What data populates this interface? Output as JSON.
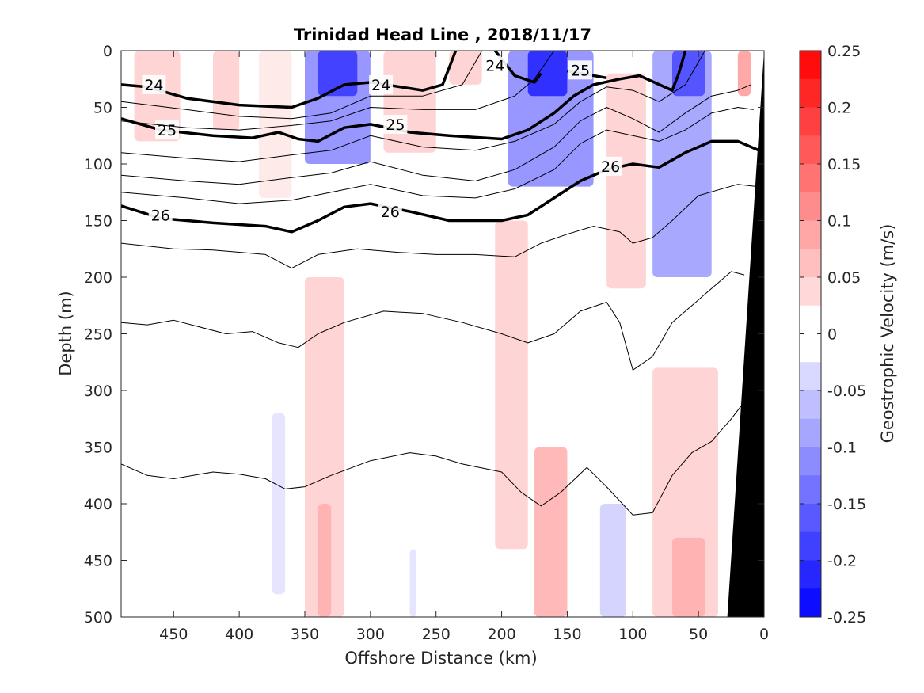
{
  "chart_data": {
    "type": "contour",
    "title": "Trinidad Head Line , 2018/11/17",
    "xlabel": "Offshore Distance (km)",
    "ylabel": "Depth (m)",
    "xlim": [
      490,
      0
    ],
    "ylim": [
      0,
      500
    ],
    "x_reversed": true,
    "y_reversed": true,
    "x_ticks": [
      450,
      400,
      350,
      300,
      250,
      200,
      150,
      100,
      50,
      0
    ],
    "y_ticks": [
      0,
      50,
      100,
      150,
      200,
      250,
      300,
      350,
      400,
      450,
      500
    ],
    "colorbar": {
      "label": "Geostrophic Velocity (m/s)",
      "range": [
        -0.25,
        0.25
      ],
      "step": 0.025,
      "tick_labels": [
        "0.25",
        "0.2",
        "0.15",
        "0.1",
        "0.05",
        "0",
        "-0.05",
        "-0.1",
        "-0.15",
        "-0.2",
        "-0.25"
      ],
      "tick_values": [
        0.25,
        0.2,
        0.15,
        0.1,
        0.05,
        0,
        -0.05,
        -0.1,
        -0.15,
        -0.2,
        -0.25
      ],
      "positive_color": "#ff0000",
      "negative_color": "#0000ff"
    },
    "velocity_cells": [
      {
        "x": [
          480,
          445
        ],
        "y": [
          0,
          80
        ],
        "v": 0.05
      },
      {
        "x": [
          420,
          400
        ],
        "y": [
          0,
          70
        ],
        "v": 0.05
      },
      {
        "x": [
          385,
          360
        ],
        "y": [
          0,
          130
        ],
        "v": 0.025
      },
      {
        "x": [
          350,
          300
        ],
        "y": [
          0,
          100
        ],
        "v": -0.12
      },
      {
        "x": [
          340,
          310
        ],
        "y": [
          0,
          40
        ],
        "v": -0.2
      },
      {
        "x": [
          290,
          250
        ],
        "y": [
          0,
          90
        ],
        "v": 0.05
      },
      {
        "x": [
          240,
          215
        ],
        "y": [
          0,
          30
        ],
        "v": 0.05
      },
      {
        "x": [
          195,
          130
        ],
        "y": [
          0,
          120
        ],
        "v": -0.12
      },
      {
        "x": [
          180,
          150
        ],
        "y": [
          0,
          40
        ],
        "v": -0.22
      },
      {
        "x": [
          120,
          90
        ],
        "y": [
          20,
          210
        ],
        "v": 0.05
      },
      {
        "x": [
          85,
          40
        ],
        "y": [
          0,
          200
        ],
        "v": -0.1
      },
      {
        "x": [
          70,
          45
        ],
        "y": [
          0,
          40
        ],
        "v": -0.18
      },
      {
        "x": [
          20,
          10
        ],
        "y": [
          0,
          40
        ],
        "v": 0.1
      },
      {
        "x": [
          350,
          320
        ],
        "y": [
          200,
          500
        ],
        "v": 0.05
      },
      {
        "x": [
          340,
          330
        ],
        "y": [
          400,
          500
        ],
        "v": 0.08
      },
      {
        "x": [
          375,
          365
        ],
        "y": [
          320,
          480
        ],
        "v": -0.03
      },
      {
        "x": [
          270,
          265
        ],
        "y": [
          440,
          500
        ],
        "v": -0.03
      },
      {
        "x": [
          205,
          180
        ],
        "y": [
          150,
          440
        ],
        "v": 0.05
      },
      {
        "x": [
          175,
          150
        ],
        "y": [
          350,
          500
        ],
        "v": 0.08
      },
      {
        "x": [
          125,
          105
        ],
        "y": [
          400,
          500
        ],
        "v": -0.05
      },
      {
        "x": [
          85,
          35
        ],
        "y": [
          280,
          500
        ],
        "v": 0.05
      },
      {
        "x": [
          70,
          45
        ],
        "y": [
          430,
          500
        ],
        "v": 0.08
      }
    ],
    "density_contours": [
      {
        "level": "24",
        "bold": true,
        "points": [
          [
            490,
            30
          ],
          [
            470,
            32
          ],
          [
            440,
            42
          ],
          [
            400,
            48
          ],
          [
            360,
            50
          ],
          [
            340,
            42
          ],
          [
            320,
            30
          ],
          [
            300,
            28
          ],
          [
            260,
            35
          ],
          [
            245,
            30
          ],
          [
            235,
            0
          ]
        ],
        "labels": [
          {
            "x": 465,
            "y": 30
          },
          {
            "x": 292,
            "y": 30
          }
        ]
      },
      {
        "level": "24",
        "bold": true,
        "points": [
          [
            205,
            0
          ],
          [
            190,
            22
          ],
          [
            175,
            28
          ],
          [
            170,
            20
          ]
        ],
        "labels": [
          {
            "x": 205,
            "y": 13
          }
        ]
      },
      {
        "level": "25",
        "bold": true,
        "points": [
          [
            490,
            60
          ],
          [
            460,
            70
          ],
          [
            420,
            75
          ],
          [
            390,
            77
          ],
          [
            370,
            72
          ],
          [
            355,
            78
          ],
          [
            340,
            80
          ],
          [
            320,
            68
          ],
          [
            300,
            65
          ],
          [
            270,
            72
          ],
          [
            240,
            75
          ],
          [
            200,
            78
          ],
          [
            180,
            70
          ],
          [
            160,
            55
          ],
          [
            145,
            40
          ],
          [
            130,
            30
          ],
          [
            110,
            25
          ],
          [
            95,
            22
          ],
          [
            70,
            35
          ],
          [
            65,
            20
          ],
          [
            60,
            0
          ]
        ],
        "labels": [
          {
            "x": 455,
            "y": 70
          },
          {
            "x": 281,
            "y": 65
          }
        ]
      },
      {
        "level": "25",
        "bold": true,
        "points": [
          [
            150,
            18
          ],
          [
            140,
            20
          ],
          [
            120,
            24
          ]
        ],
        "labels": [
          {
            "x": 140,
            "y": 17
          }
        ]
      },
      {
        "level": "26",
        "bold": true,
        "points": [
          [
            490,
            137
          ],
          [
            460,
            148
          ],
          [
            420,
            152
          ],
          [
            380,
            155
          ],
          [
            360,
            160
          ],
          [
            340,
            150
          ],
          [
            320,
            138
          ],
          [
            300,
            135
          ],
          [
            270,
            142
          ],
          [
            240,
            150
          ],
          [
            200,
            150
          ],
          [
            180,
            145
          ],
          [
            160,
            130
          ],
          [
            140,
            115
          ],
          [
            120,
            105
          ],
          [
            100,
            100
          ],
          [
            80,
            103
          ],
          [
            60,
            90
          ],
          [
            40,
            80
          ],
          [
            20,
            80
          ],
          [
            0,
            90
          ]
        ],
        "labels": [
          {
            "x": 460,
            "y": 145
          },
          {
            "x": 285,
            "y": 142
          },
          {
            "x": 117,
            "y": 102
          }
        ]
      },
      {
        "level": "",
        "bold": false,
        "points": [
          [
            490,
            45
          ],
          [
            440,
            52
          ],
          [
            400,
            58
          ],
          [
            360,
            60
          ],
          [
            330,
            55
          ],
          [
            300,
            40
          ],
          [
            260,
            40
          ],
          [
            230,
            30
          ],
          [
            215,
            0
          ]
        ],
        "labels": []
      },
      {
        "level": "",
        "bold": false,
        "points": [
          [
            490,
            62
          ],
          [
            440,
            68
          ],
          [
            400,
            70
          ],
          [
            360,
            66
          ],
          [
            330,
            62
          ],
          [
            300,
            50
          ],
          [
            260,
            52
          ],
          [
            220,
            52
          ],
          [
            190,
            40
          ],
          [
            175,
            25
          ],
          [
            160,
            0
          ]
        ],
        "labels": []
      },
      {
        "level": "",
        "bold": false,
        "points": [
          [
            490,
            90
          ],
          [
            440,
            95
          ],
          [
            400,
            98
          ],
          [
            360,
            92
          ],
          [
            330,
            88
          ],
          [
            300,
            75
          ],
          [
            260,
            85
          ],
          [
            220,
            88
          ],
          [
            190,
            80
          ],
          [
            160,
            65
          ],
          [
            140,
            45
          ],
          [
            120,
            32
          ],
          [
            100,
            35
          ],
          [
            80,
            45
          ],
          [
            60,
            30
          ],
          [
            45,
            0
          ]
        ],
        "labels": []
      },
      {
        "level": "",
        "bold": false,
        "points": [
          [
            490,
            110
          ],
          [
            440,
            115
          ],
          [
            400,
            118
          ],
          [
            360,
            112
          ],
          [
            330,
            108
          ],
          [
            300,
            98
          ],
          [
            260,
            110
          ],
          [
            220,
            115
          ],
          [
            190,
            105
          ],
          [
            160,
            85
          ],
          [
            140,
            62
          ],
          [
            120,
            50
          ],
          [
            100,
            60
          ],
          [
            80,
            72
          ],
          [
            60,
            55
          ],
          [
            40,
            40
          ],
          [
            20,
            35
          ],
          [
            10,
            30
          ]
        ],
        "labels": []
      },
      {
        "level": "",
        "bold": false,
        "points": [
          [
            490,
            125
          ],
          [
            440,
            130
          ],
          [
            400,
            135
          ],
          [
            360,
            132
          ],
          [
            330,
            125
          ],
          [
            300,
            118
          ],
          [
            260,
            128
          ],
          [
            220,
            130
          ],
          [
            190,
            122
          ],
          [
            160,
            105
          ],
          [
            140,
            82
          ],
          [
            120,
            70
          ],
          [
            100,
            75
          ],
          [
            80,
            80
          ],
          [
            60,
            70
          ],
          [
            40,
            55
          ],
          [
            20,
            50
          ],
          [
            8,
            52
          ]
        ],
        "labels": []
      },
      {
        "level": "",
        "bold": false,
        "points": [
          [
            490,
            170
          ],
          [
            450,
            175
          ],
          [
            420,
            176
          ],
          [
            400,
            178
          ],
          [
            380,
            180
          ],
          [
            360,
            192
          ],
          [
            340,
            180
          ],
          [
            310,
            175
          ],
          [
            280,
            178
          ],
          [
            250,
            180
          ],
          [
            220,
            180
          ],
          [
            190,
            182
          ],
          [
            170,
            170
          ],
          [
            150,
            162
          ],
          [
            130,
            155
          ],
          [
            110,
            160
          ],
          [
            100,
            170
          ],
          [
            85,
            165
          ],
          [
            70,
            150
          ],
          [
            50,
            128
          ],
          [
            20,
            118
          ],
          [
            5,
            120
          ]
        ],
        "labels": []
      },
      {
        "level": "",
        "bold": false,
        "points": [
          [
            490,
            240
          ],
          [
            470,
            242
          ],
          [
            450,
            238
          ],
          [
            430,
            244
          ],
          [
            410,
            250
          ],
          [
            390,
            248
          ],
          [
            370,
            258
          ],
          [
            355,
            262
          ],
          [
            340,
            250
          ],
          [
            320,
            240
          ],
          [
            290,
            230
          ],
          [
            260,
            232
          ],
          [
            230,
            240
          ],
          [
            200,
            250
          ],
          [
            180,
            258
          ],
          [
            160,
            250
          ],
          [
            140,
            230
          ],
          [
            120,
            222
          ],
          [
            110,
            240
          ],
          [
            100,
            282
          ],
          [
            85,
            270
          ],
          [
            70,
            240
          ],
          [
            55,
            225
          ],
          [
            45,
            215
          ],
          [
            25,
            195
          ],
          [
            15,
            198
          ]
        ],
        "labels": []
      },
      {
        "level": "",
        "bold": false,
        "points": [
          [
            490,
            365
          ],
          [
            470,
            375
          ],
          [
            450,
            378
          ],
          [
            420,
            372
          ],
          [
            400,
            374
          ],
          [
            380,
            378
          ],
          [
            365,
            387
          ],
          [
            350,
            385
          ],
          [
            330,
            375
          ],
          [
            300,
            362
          ],
          [
            270,
            355
          ],
          [
            250,
            358
          ],
          [
            230,
            365
          ],
          [
            200,
            372
          ],
          [
            185,
            390
          ],
          [
            170,
            402
          ],
          [
            155,
            390
          ],
          [
            135,
            368
          ],
          [
            120,
            385
          ],
          [
            100,
            410
          ],
          [
            85,
            408
          ],
          [
            70,
            375
          ],
          [
            55,
            355
          ],
          [
            40,
            345
          ],
          [
            25,
            325
          ],
          [
            15,
            310
          ]
        ],
        "labels": []
      }
    ],
    "bathymetry_polygon": [
      [
        0,
        0
      ],
      [
        28,
        500
      ],
      [
        0,
        500
      ]
    ]
  }
}
